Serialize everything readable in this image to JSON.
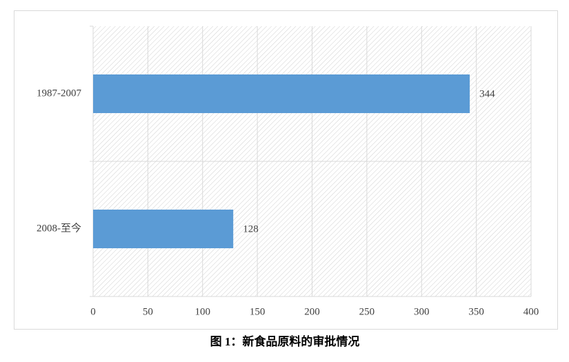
{
  "chart_data": {
    "type": "hbar",
    "title": "图 1：新食品原料的审批情况",
    "categories": [
      "1987-2007",
      "2008-至今"
    ],
    "values": [
      344,
      128
    ],
    "color": "#5b9bd5",
    "xlim": [
      0,
      400
    ],
    "xticks": [
      0,
      50,
      100,
      150,
      200,
      250,
      300,
      350,
      400
    ],
    "grid": true
  }
}
